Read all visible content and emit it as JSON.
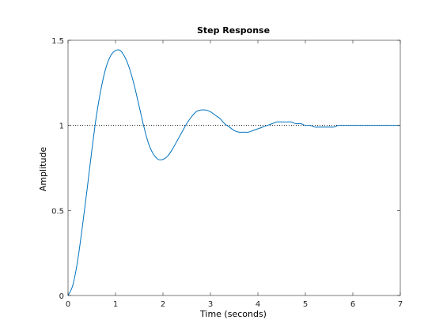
{
  "chart_data": {
    "type": "line",
    "title": "Step Response",
    "xlabel": "Time (seconds)",
    "ylabel": "Amplitude",
    "xlim": [
      0,
      7
    ],
    "ylim": [
      0,
      1.5
    ],
    "x_ticks": [
      0,
      1,
      2,
      3,
      4,
      5,
      6,
      7
    ],
    "y_ticks": [
      0,
      0.5,
      1,
      1.5
    ],
    "x_tick_labels": [
      "0",
      "1",
      "2",
      "3",
      "4",
      "5",
      "6",
      "7"
    ],
    "y_tick_labels": [
      "0",
      "0.5",
      "1",
      "1.5"
    ],
    "reference_line": {
      "y": 1,
      "style": "dotted"
    },
    "grid": false,
    "series": [
      {
        "color": "#0072bd",
        "x": [
          0,
          0.1,
          0.2,
          0.3,
          0.4,
          0.5,
          0.6,
          0.7,
          0.8,
          0.9,
          1.0,
          1.1,
          1.2,
          1.3,
          1.4,
          1.5,
          1.6,
          1.7,
          1.8,
          1.9,
          2.0,
          2.1,
          2.2,
          2.3,
          2.4,
          2.5,
          2.6,
          2.7,
          2.8,
          2.9,
          3.0,
          3.1,
          3.2,
          3.3,
          3.4,
          3.5,
          3.6,
          3.7,
          3.8,
          3.9,
          4.0,
          4.1,
          4.2,
          4.3,
          4.4,
          4.5,
          4.6,
          4.7,
          4.8,
          4.9,
          5.0,
          5.1,
          5.2,
          5.3,
          5.4,
          5.5,
          5.6,
          5.7,
          5.8,
          5.9,
          6.0,
          6.2,
          6.4,
          6.6,
          6.8,
          7.0
        ],
        "y": [
          0,
          0.06,
          0.2,
          0.4,
          0.62,
          0.85,
          1.06,
          1.22,
          1.34,
          1.41,
          1.44,
          1.44,
          1.4,
          1.33,
          1.23,
          1.11,
          0.99,
          0.89,
          0.83,
          0.8,
          0.8,
          0.82,
          0.86,
          0.91,
          0.96,
          1.01,
          1.05,
          1.08,
          1.09,
          1.09,
          1.08,
          1.06,
          1.04,
          1.01,
          0.99,
          0.97,
          0.96,
          0.96,
          0.96,
          0.97,
          0.98,
          0.99,
          1.0,
          1.01,
          1.02,
          1.02,
          1.02,
          1.02,
          1.01,
          1.01,
          1.0,
          1.0,
          0.99,
          0.99,
          0.99,
          0.99,
          0.99,
          1.0,
          1.0,
          1.0,
          1.0,
          1.0,
          1.0,
          1.0,
          1.0,
          1.0
        ]
      }
    ]
  }
}
